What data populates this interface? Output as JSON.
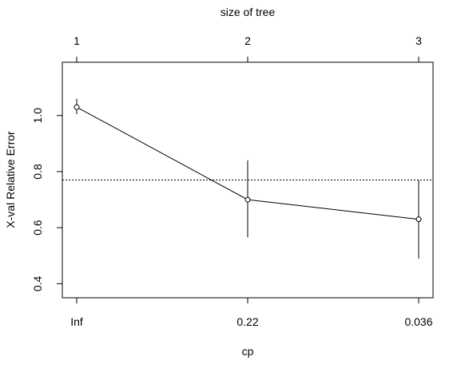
{
  "chart_data": {
    "type": "line",
    "title": "",
    "xlabel": "cp",
    "ylabel": "X-val Relative Error",
    "top_axis_label": "size of tree",
    "categories": [
      "Inf",
      "0.22",
      "0.036"
    ],
    "tree_sizes": [
      "1",
      "2",
      "3"
    ],
    "values": [
      1.03,
      0.7,
      0.63
    ],
    "error_low": [
      1.005,
      0.565,
      0.49
    ],
    "error_high": [
      1.06,
      0.84,
      0.77
    ],
    "reference_line": 0.77,
    "ylim": [
      0.35,
      1.19
    ],
    "yticks": [
      0.4,
      0.6,
      0.8,
      1.0
    ],
    "ytick_labels": [
      "0.4",
      "0.6",
      "0.8",
      "1.0"
    ],
    "grid": false,
    "colors": {
      "line": "#000000",
      "reference": "#000000"
    }
  }
}
